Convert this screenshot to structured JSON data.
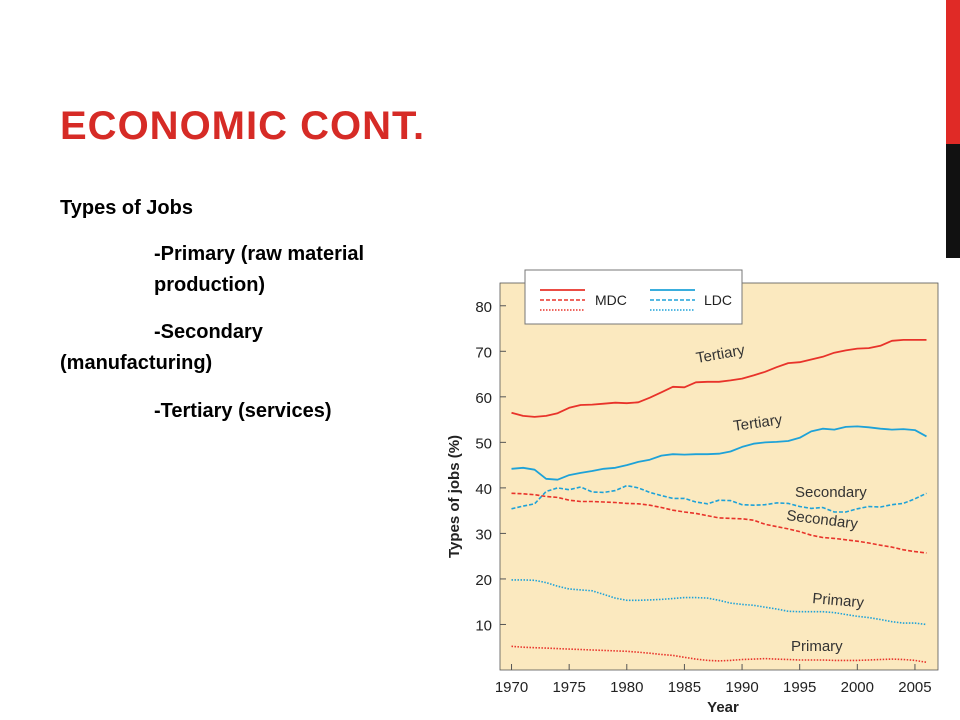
{
  "slide": {
    "title": "ECONOMIC CONT.",
    "bullets": {
      "heading": "Types of Jobs",
      "primary": "-Primary (raw material",
      "primary_cont": "production)",
      "secondary": "-Secondary",
      "secondary_cont": "(manufacturing)",
      "tertiary": "-Tertiary (services)"
    }
  },
  "colors": {
    "title": "#d62b26",
    "accent_bar": "#e02a26",
    "accent_bar_dark": "#111111",
    "plot_bg": "#fbe9bf",
    "mdc": "#e8332a",
    "ldc": "#1ea2d8"
  },
  "chart_data": {
    "type": "line",
    "xlabel": "Year",
    "ylabel": "Types of jobs (%)",
    "xlim": [
      1969,
      2007
    ],
    "ylim": [
      0,
      85
    ],
    "x_ticks": [
      1970,
      1975,
      1980,
      1985,
      1990,
      1995,
      2000,
      2005
    ],
    "y_ticks": [
      10,
      20,
      30,
      40,
      50,
      60,
      70,
      80
    ],
    "grid": false,
    "legend": {
      "position": "top-left",
      "entries": [
        "MDC",
        "LDC"
      ]
    },
    "annotations": [
      "Tertiary",
      "Tertiary",
      "Secondary",
      "Secondary",
      "Primary",
      "Primary"
    ],
    "series": [
      {
        "name": "MDC",
        "label": "Tertiary",
        "style": "solid",
        "x": [
          1970,
          1971,
          1972,
          1973,
          1974,
          1975,
          1976,
          1977,
          1978,
          1979,
          1980,
          1981,
          1982,
          1983,
          1984,
          1985,
          1986,
          1987,
          1988,
          1989,
          1990,
          1991,
          1992,
          1993,
          1994,
          1995,
          1996,
          1997,
          1998,
          1999,
          2000,
          2001,
          2002,
          2003,
          2004,
          2005,
          2006
        ],
        "y": [
          56.5,
          55.8,
          55.6,
          55.8,
          56.4,
          57.6,
          58.2,
          58.3,
          58.5,
          58.7,
          58.6,
          58.8,
          59.8,
          61.0,
          62.2,
          62.1,
          63.2,
          63.3,
          63.3,
          63.6,
          64.0,
          64.7,
          65.5,
          66.5,
          67.4,
          67.6,
          68.2,
          68.8,
          69.7,
          70.2,
          70.6,
          70.7,
          71.2,
          72.3,
          72.5,
          72.5,
          72.5
        ]
      },
      {
        "name": "LDC",
        "label": "Tertiary",
        "style": "solid",
        "x": [
          1970,
          1971,
          1972,
          1973,
          1974,
          1975,
          1976,
          1977,
          1978,
          1979,
          1980,
          1981,
          1982,
          1983,
          1984,
          1985,
          1986,
          1987,
          1988,
          1989,
          1990,
          1991,
          1992,
          1993,
          1994,
          1995,
          1996,
          1997,
          1998,
          1999,
          2000,
          2001,
          2002,
          2003,
          2004,
          2005,
          2006
        ],
        "y": [
          44.2,
          44.4,
          44.0,
          42.0,
          41.8,
          42.8,
          43.3,
          43.7,
          44.2,
          44.4,
          45.0,
          45.7,
          46.2,
          47.1,
          47.4,
          47.3,
          47.4,
          47.4,
          47.5,
          48.0,
          49.0,
          49.7,
          50.0,
          50.1,
          50.3,
          51.0,
          52.4,
          53.0,
          52.8,
          53.4,
          53.5,
          53.3,
          53.0,
          52.8,
          52.9,
          52.7,
          51.3
        ]
      },
      {
        "name": "LDC",
        "label": "Secondary",
        "style": "dashed",
        "x": [
          1970,
          1971,
          1972,
          1973,
          1974,
          1975,
          1976,
          1977,
          1978,
          1979,
          1980,
          1981,
          1982,
          1983,
          1984,
          1985,
          1986,
          1987,
          1988,
          1989,
          1990,
          1991,
          1992,
          1993,
          1994,
          1995,
          1996,
          1997,
          1998,
          1999,
          2000,
          2001,
          2002,
          2003,
          2004,
          2005,
          2006
        ],
        "y": [
          35.4,
          36.0,
          36.5,
          39.2,
          40.0,
          39.6,
          40.2,
          39.1,
          39.0,
          39.4,
          40.5,
          40.0,
          39.0,
          38.3,
          37.7,
          37.7,
          36.9,
          36.5,
          37.3,
          37.2,
          36.3,
          36.2,
          36.3,
          36.7,
          36.6,
          35.9,
          35.5,
          35.7,
          34.7,
          34.7,
          35.4,
          35.9,
          35.8,
          36.3,
          36.6,
          37.6,
          38.8
        ]
      },
      {
        "name": "MDC",
        "label": "Secondary",
        "style": "dashed",
        "x": [
          1970,
          1971,
          1972,
          1973,
          1974,
          1975,
          1976,
          1977,
          1978,
          1979,
          1980,
          1981,
          1982,
          1983,
          1984,
          1985,
          1986,
          1987,
          1988,
          1989,
          1990,
          1991,
          1992,
          1993,
          1994,
          1995,
          1996,
          1997,
          1998,
          1999,
          2000,
          2001,
          2002,
          2003,
          2004,
          2005,
          2006
        ],
        "y": [
          38.8,
          38.7,
          38.5,
          38.1,
          37.9,
          37.3,
          37.0,
          37.0,
          36.9,
          36.8,
          36.6,
          36.5,
          36.2,
          35.7,
          35.1,
          34.7,
          34.4,
          33.9,
          33.4,
          33.3,
          33.2,
          32.9,
          32.0,
          31.5,
          31.0,
          30.4,
          29.6,
          29.1,
          28.9,
          28.6,
          28.3,
          27.9,
          27.4,
          27.0,
          26.4,
          26.0,
          25.7
        ]
      },
      {
        "name": "LDC",
        "label": "Primary",
        "style": "dotted",
        "x": [
          1970,
          1971,
          1972,
          1973,
          1974,
          1975,
          1976,
          1977,
          1978,
          1979,
          1980,
          1981,
          1982,
          1983,
          1984,
          1985,
          1986,
          1987,
          1988,
          1989,
          1990,
          1991,
          1992,
          1993,
          1994,
          1995,
          1996,
          1997,
          1998,
          1999,
          2000,
          2001,
          2002,
          2003,
          2004,
          2005,
          2006
        ],
        "y": [
          19.8,
          19.8,
          19.7,
          19.2,
          18.4,
          17.8,
          17.6,
          17.4,
          16.6,
          15.8,
          15.3,
          15.3,
          15.4,
          15.5,
          15.7,
          15.9,
          15.9,
          15.8,
          15.3,
          14.7,
          14.4,
          14.2,
          13.8,
          13.4,
          12.9,
          12.8,
          12.8,
          12.8,
          12.6,
          12.2,
          11.8,
          11.5,
          11.1,
          10.6,
          10.3,
          10.3,
          10.0
        ]
      },
      {
        "name": "MDC",
        "label": "Primary",
        "style": "dotted",
        "x": [
          1970,
          1971,
          1972,
          1973,
          1974,
          1975,
          1976,
          1977,
          1978,
          1979,
          1980,
          1981,
          1982,
          1983,
          1984,
          1985,
          1986,
          1987,
          1988,
          1989,
          1990,
          1991,
          1992,
          1993,
          1994,
          1995,
          1996,
          1997,
          1998,
          1999,
          2000,
          2001,
          2002,
          2003,
          2004,
          2005,
          2006
        ],
        "y": [
          5.2,
          5.0,
          4.9,
          4.8,
          4.7,
          4.6,
          4.5,
          4.4,
          4.3,
          4.2,
          4.1,
          3.9,
          3.7,
          3.4,
          3.2,
          2.8,
          2.4,
          2.1,
          2.0,
          2.1,
          2.3,
          2.4,
          2.5,
          2.4,
          2.3,
          2.2,
          2.2,
          2.2,
          2.1,
          2.1,
          2.1,
          2.2,
          2.3,
          2.4,
          2.3,
          2.1,
          1.7
        ]
      }
    ]
  }
}
